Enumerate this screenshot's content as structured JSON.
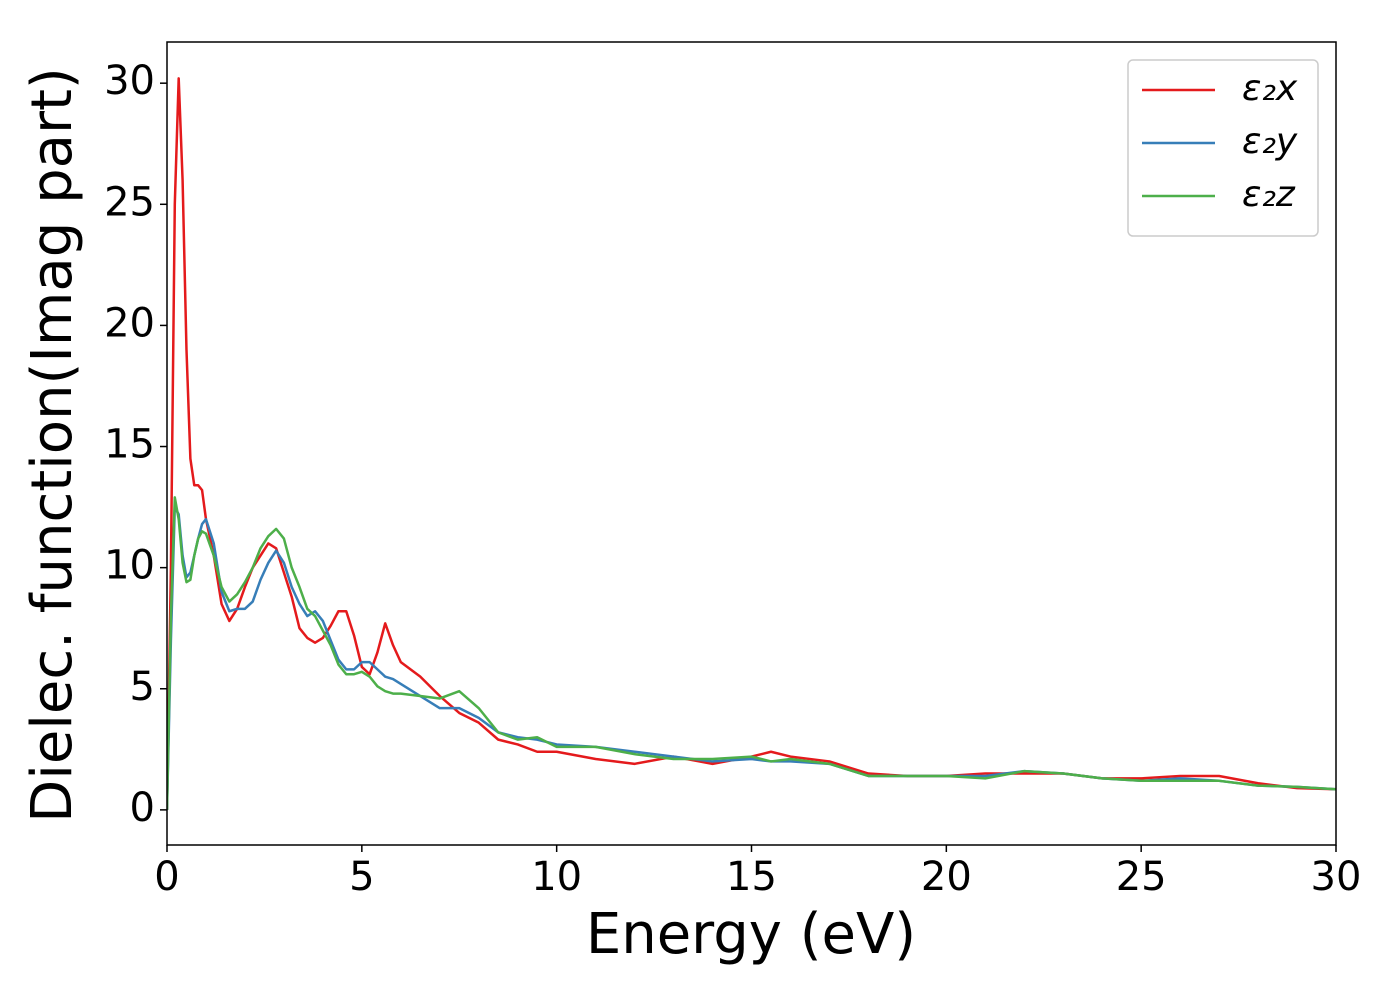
{
  "chart_data": {
    "type": "line",
    "xlabel": "Energy (eV)",
    "ylabel": "Dielec. function(Imag part)",
    "x": [
      0,
      0.1,
      0.2,
      0.3,
      0.4,
      0.5,
      0.6,
      0.7,
      0.8,
      0.9,
      1.0,
      1.2,
      1.4,
      1.6,
      1.8,
      2.0,
      2.2,
      2.4,
      2.6,
      2.8,
      3.0,
      3.2,
      3.4,
      3.6,
      3.8,
      4.0,
      4.2,
      4.4,
      4.6,
      4.8,
      5.0,
      5.2,
      5.4,
      5.6,
      5.8,
      6.0,
      6.5,
      7.0,
      7.5,
      8.0,
      8.5,
      9.0,
      9.5,
      10,
      11,
      12,
      13,
      14,
      15,
      15.5,
      16,
      17,
      18,
      19,
      20,
      21,
      22,
      23,
      24,
      25,
      26,
      27,
      28,
      29,
      30
    ],
    "series": [
      {
        "name": "ε₂x",
        "color": "#e41a1c",
        "values": [
          0,
          10,
          25,
          30.2,
          26,
          19,
          14.5,
          13.4,
          13.4,
          13.2,
          12,
          10.5,
          8.5,
          7.8,
          8.3,
          9.2,
          10.0,
          10.5,
          11.0,
          10.8,
          9.8,
          8.8,
          7.5,
          7.1,
          6.9,
          7.1,
          7.6,
          8.2,
          8.2,
          7.2,
          5.9,
          5.6,
          6.5,
          7.7,
          6.8,
          6.1,
          5.5,
          4.7,
          4.0,
          3.6,
          2.9,
          2.7,
          2.4,
          2.4,
          2.1,
          1.9,
          2.2,
          1.9,
          2.2,
          2.4,
          2.2,
          2.0,
          1.5,
          1.4,
          1.4,
          1.5,
          1.5,
          1.5,
          1.3,
          1.3,
          1.4,
          1.4,
          1.1,
          0.9,
          0.85
        ]
      },
      {
        "name": "ε₂y",
        "color": "#377eb8",
        "values": [
          0,
          7,
          12.5,
          12.2,
          10.5,
          9.6,
          9.8,
          10.5,
          11.2,
          11.8,
          12.0,
          11,
          9,
          8.2,
          8.3,
          8.3,
          8.6,
          9.5,
          10.2,
          10.7,
          10.2,
          9.2,
          8.5,
          8.0,
          8.2,
          7.8,
          7.0,
          6.2,
          5.8,
          5.8,
          6.1,
          6.1,
          5.8,
          5.5,
          5.4,
          5.2,
          4.7,
          4.2,
          4.2,
          3.8,
          3.2,
          3.0,
          2.9,
          2.7,
          2.6,
          2.4,
          2.2,
          2.0,
          2.1,
          2.0,
          2.0,
          1.9,
          1.4,
          1.4,
          1.4,
          1.4,
          1.6,
          1.5,
          1.3,
          1.2,
          1.3,
          1.2,
          1.0,
          0.95,
          0.85
        ]
      },
      {
        "name": "ε₂z",
        "color": "#4daf4a",
        "values": [
          0,
          8,
          12.9,
          12,
          10.2,
          9.4,
          9.5,
          10.5,
          11.2,
          11.5,
          11.4,
          10.5,
          9.2,
          8.6,
          8.9,
          9.4,
          10.0,
          10.8,
          11.3,
          11.6,
          11.2,
          10.0,
          9.2,
          8.3,
          8.0,
          7.4,
          6.8,
          6.0,
          5.6,
          5.6,
          5.7,
          5.5,
          5.1,
          4.9,
          4.8,
          4.8,
          4.7,
          4.6,
          4.9,
          4.2,
          3.2,
          2.9,
          3.0,
          2.6,
          2.6,
          2.3,
          2.1,
          2.1,
          2.2,
          2.0,
          2.1,
          1.9,
          1.4,
          1.4,
          1.4,
          1.3,
          1.6,
          1.5,
          1.3,
          1.2,
          1.2,
          1.2,
          1.0,
          0.95,
          0.85
        ]
      }
    ],
    "xlim": [
      0,
      30
    ],
    "xticks": [
      0,
      5,
      10,
      15,
      20,
      25,
      30
    ],
    "ylim": [
      -1.45,
      31.7
    ],
    "yticks": [
      0,
      5,
      10,
      15,
      20,
      25,
      30
    ],
    "grid": false,
    "legend": "upper right"
  }
}
